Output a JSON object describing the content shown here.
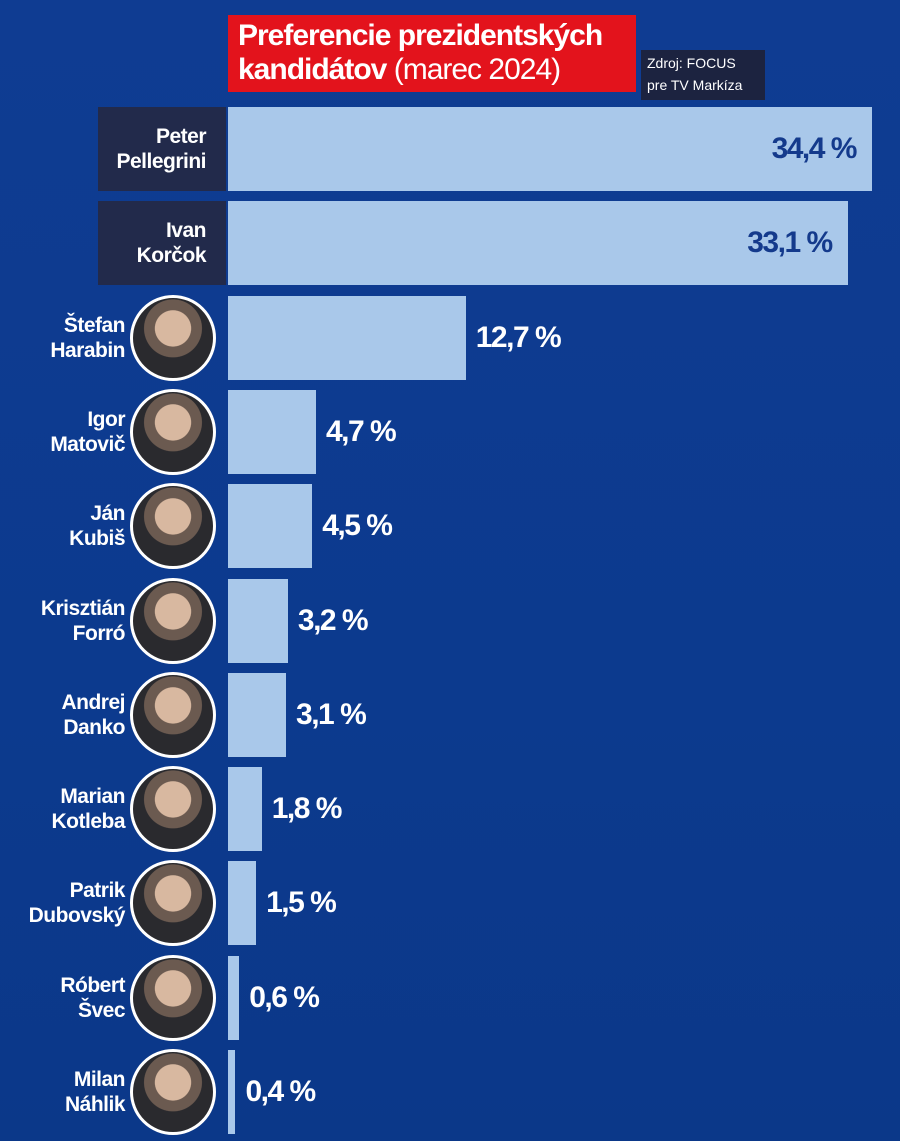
{
  "chart_data": {
    "type": "bar",
    "orientation": "horizontal",
    "title": "Preferencie prezidentských kandidátov",
    "subtitle": "(marec 2024)",
    "source": "Zdroj: FOCUS pre TV Markíza",
    "categories": [
      "Peter Pellegrini",
      "Ivan Korčok",
      "Štefan Harabin",
      "Igor Matovič",
      "Ján Kubiš",
      "Krisztián Forró",
      "Andrej Danko",
      "Marian Kotleba",
      "Patrik Dubovský",
      "Róbert Švec",
      "Milan Náhlik"
    ],
    "values": [
      34.4,
      33.1,
      12.7,
      4.7,
      4.5,
      3.2,
      3.1,
      1.8,
      1.5,
      0.6,
      0.4
    ],
    "value_labels": [
      "34,4 %",
      "33,1 %",
      "12,7 %",
      "4,7 %",
      "4,5 %",
      "3,2 %",
      "3,1 %",
      "1,8 %",
      "1,5 %",
      "0,6 %",
      "0,4 %"
    ],
    "color": "#a9c8ea",
    "grid": false
  }
}
